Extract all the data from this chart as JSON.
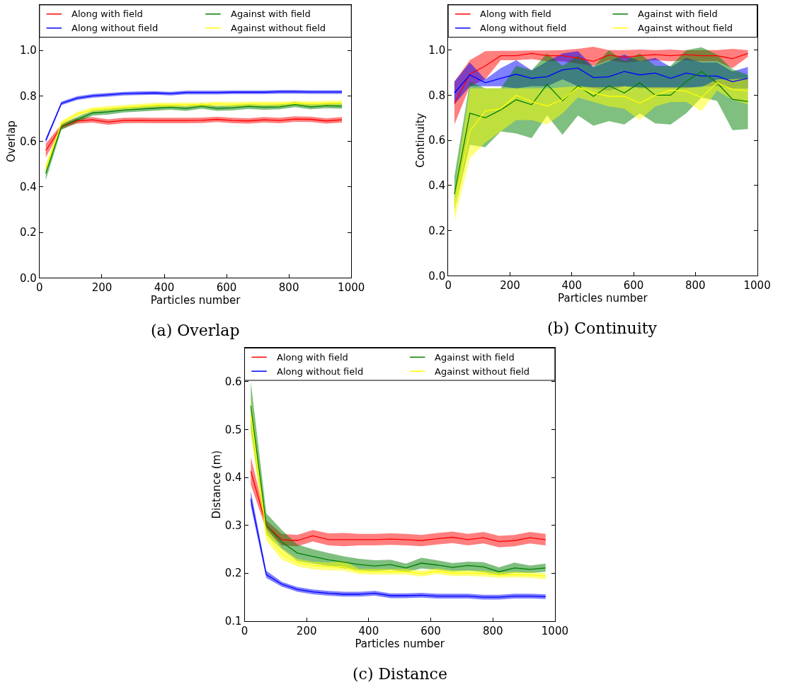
{
  "chart_data": [
    {
      "type": "line",
      "xlabel": "Particles number",
      "ylabel": "Overlap",
      "annotations": [
        "(a) Overlap"
      ],
      "legend": "top",
      "line_style": "solid",
      "x": [
        20,
        70,
        120,
        170,
        220,
        270,
        320,
        370,
        420,
        470,
        520,
        570,
        620,
        670,
        720,
        770,
        820,
        870,
        920,
        970
      ],
      "xlim": [
        0,
        1000
      ],
      "xticks": [
        0,
        200,
        400,
        600,
        800,
        1000
      ],
      "ylim": [
        0,
        1.2
      ],
      "yticks": [
        {
          "value": 0,
          "label": "0.0"
        },
        {
          "value": 0.2,
          "label": "0.2"
        },
        {
          "value": 0.4,
          "label": "0.4"
        },
        {
          "value": 0.6,
          "label": "0.6"
        },
        {
          "value": 0.8,
          "label": "0.8"
        },
        {
          "value": 1.0,
          "label": "1.0"
        }
      ],
      "series": [
        {
          "name": "Along with field",
          "color": "#ff0000",
          "values": [
            0.56,
            0.665,
            0.69,
            0.695,
            0.685,
            0.692,
            0.693,
            0.692,
            0.692,
            0.692,
            0.693,
            0.697,
            0.692,
            0.69,
            0.695,
            0.692,
            0.698,
            0.697,
            0.69,
            0.695
          ],
          "lower": [
            0.53,
            0.655,
            0.678,
            0.683,
            0.673,
            0.68,
            0.681,
            0.68,
            0.68,
            0.68,
            0.681,
            0.685,
            0.68,
            0.678,
            0.683,
            0.68,
            0.686,
            0.685,
            0.678,
            0.683
          ],
          "upper": [
            0.59,
            0.675,
            0.702,
            0.707,
            0.697,
            0.704,
            0.705,
            0.704,
            0.704,
            0.704,
            0.705,
            0.709,
            0.704,
            0.702,
            0.707,
            0.704,
            0.71,
            0.709,
            0.702,
            0.707
          ]
        },
        {
          "name": "Along without field",
          "color": "#0000ff",
          "values": [
            0.604,
            0.767,
            0.79,
            0.8,
            0.805,
            0.81,
            0.812,
            0.813,
            0.81,
            0.815,
            0.815,
            0.815,
            0.816,
            0.816,
            0.816,
            0.818,
            0.818,
            0.817,
            0.817,
            0.817
          ],
          "lower": [
            0.594,
            0.759,
            0.782,
            0.792,
            0.797,
            0.802,
            0.804,
            0.805,
            0.802,
            0.807,
            0.807,
            0.807,
            0.808,
            0.808,
            0.808,
            0.81,
            0.81,
            0.809,
            0.809,
            0.809
          ],
          "upper": [
            0.614,
            0.775,
            0.798,
            0.808,
            0.813,
            0.818,
            0.82,
            0.821,
            0.818,
            0.823,
            0.823,
            0.823,
            0.824,
            0.824,
            0.824,
            0.826,
            0.826,
            0.825,
            0.825,
            0.825
          ]
        },
        {
          "name": "Against with field",
          "color": "#008000",
          "values": [
            0.46,
            0.665,
            0.695,
            0.725,
            0.73,
            0.738,
            0.742,
            0.746,
            0.75,
            0.745,
            0.755,
            0.745,
            0.748,
            0.754,
            0.75,
            0.752,
            0.762,
            0.752,
            0.757,
            0.755
          ],
          "lower": [
            0.43,
            0.65,
            0.683,
            0.713,
            0.718,
            0.727,
            0.731,
            0.735,
            0.739,
            0.734,
            0.744,
            0.734,
            0.737,
            0.743,
            0.739,
            0.741,
            0.751,
            0.741,
            0.746,
            0.744
          ],
          "upper": [
            0.49,
            0.68,
            0.707,
            0.737,
            0.742,
            0.749,
            0.753,
            0.757,
            0.761,
            0.756,
            0.766,
            0.756,
            0.759,
            0.765,
            0.761,
            0.763,
            0.773,
            0.763,
            0.768,
            0.766
          ]
        },
        {
          "name": "Against without field",
          "color": "#ffff00",
          "values": [
            0.48,
            0.68,
            0.72,
            0.74,
            0.745,
            0.75,
            0.755,
            0.76,
            0.76,
            0.762,
            0.762,
            0.765,
            0.763,
            0.765,
            0.765,
            0.765,
            0.768,
            0.766,
            0.768,
            0.77
          ],
          "lower": [
            0.46,
            0.67,
            0.71,
            0.73,
            0.735,
            0.74,
            0.745,
            0.75,
            0.75,
            0.752,
            0.752,
            0.755,
            0.753,
            0.755,
            0.755,
            0.755,
            0.758,
            0.756,
            0.758,
            0.76
          ],
          "upper": [
            0.5,
            0.69,
            0.73,
            0.75,
            0.755,
            0.76,
            0.765,
            0.77,
            0.77,
            0.772,
            0.772,
            0.775,
            0.773,
            0.775,
            0.775,
            0.775,
            0.778,
            0.776,
            0.778,
            0.78
          ]
        }
      ]
    },
    {
      "type": "line",
      "xlabel": "Particles number",
      "ylabel": "Continuity",
      "annotations": [
        "(b) Continuity"
      ],
      "legend": "top",
      "line_style": "solid",
      "x": [
        20,
        70,
        120,
        170,
        220,
        270,
        320,
        370,
        420,
        470,
        520,
        570,
        620,
        670,
        720,
        770,
        820,
        870,
        920,
        970
      ],
      "xlim": [
        0,
        1000
      ],
      "xticks": [
        0,
        200,
        400,
        600,
        800,
        1000
      ],
      "ylim": [
        0,
        1.2
      ],
      "yticks": [
        {
          "value": 0,
          "label": "0.0"
        },
        {
          "value": 0.2,
          "label": "0.2"
        },
        {
          "value": 0.4,
          "label": "0.4"
        },
        {
          "value": 0.6,
          "label": "0.6"
        },
        {
          "value": 0.8,
          "label": "0.8"
        },
        {
          "value": 1.0,
          "label": "1.0"
        }
      ],
      "series": [
        {
          "name": "Along with field",
          "color": "#ff0000",
          "values": [
            0.763,
            0.893,
            0.93,
            0.975,
            0.975,
            0.985,
            0.975,
            0.975,
            0.965,
            0.95,
            0.978,
            0.968,
            0.975,
            0.98,
            0.975,
            0.98,
            0.975,
            0.975,
            0.962,
            0.985
          ],
          "lower": [
            0.67,
            0.84,
            0.87,
            0.955,
            0.955,
            0.96,
            0.95,
            0.95,
            0.94,
            0.93,
            0.955,
            0.945,
            0.95,
            0.955,
            0.95,
            0.955,
            0.95,
            0.95,
            0.92,
            0.97
          ],
          "upper": [
            0.86,
            0.955,
            0.995,
            0.997,
            0.997,
            0.998,
            0.998,
            1.0,
            1.005,
            1.015,
            1.0,
            1.0,
            1.002,
            1.0,
            1.002,
            0.998,
            1.0,
            1.0,
            1.005,
            1.0
          ]
        },
        {
          "name": "Along without field",
          "color": "#0000ff",
          "values": [
            0.81,
            0.89,
            0.855,
            0.875,
            0.893,
            0.875,
            0.882,
            0.912,
            0.92,
            0.878,
            0.882,
            0.905,
            0.89,
            0.898,
            0.875,
            0.898,
            0.885,
            0.885,
            0.86,
            0.875
          ],
          "lower": [
            0.76,
            0.84,
            0.84,
            0.84,
            0.83,
            0.84,
            0.84,
            0.87,
            0.84,
            0.83,
            0.82,
            0.84,
            0.83,
            0.83,
            0.83,
            0.83,
            0.84,
            0.84,
            0.83,
            0.83
          ],
          "upper": [
            0.86,
            0.945,
            0.87,
            0.92,
            0.955,
            0.91,
            0.95,
            0.985,
            0.995,
            0.925,
            0.95,
            0.98,
            0.95,
            0.965,
            0.925,
            0.965,
            0.945,
            0.945,
            0.905,
            0.925
          ]
        },
        {
          "name": "Against with field",
          "color": "#008000",
          "values": [
            0.362,
            0.72,
            0.7,
            0.735,
            0.78,
            0.758,
            0.848,
            0.775,
            0.842,
            0.795,
            0.842,
            0.81,
            0.855,
            0.8,
            0.8,
            0.86,
            0.905,
            0.855,
            0.782,
            0.772
          ],
          "lower": [
            0.29,
            0.58,
            0.57,
            0.64,
            0.63,
            0.61,
            0.71,
            0.625,
            0.71,
            0.665,
            0.685,
            0.67,
            0.72,
            0.675,
            0.67,
            0.72,
            0.79,
            0.775,
            0.645,
            0.65
          ],
          "upper": [
            0.44,
            0.86,
            0.83,
            0.83,
            0.93,
            0.91,
            0.985,
            0.93,
            0.975,
            0.925,
            1.0,
            0.95,
            0.985,
            0.93,
            0.93,
            1.0,
            1.012,
            0.98,
            0.915,
            0.89
          ]
        },
        {
          "name": "Against without field",
          "color": "#ffff00",
          "values": [
            0.31,
            0.64,
            0.73,
            0.74,
            0.8,
            0.772,
            0.752,
            0.78,
            0.835,
            0.81,
            0.795,
            0.795,
            0.765,
            0.8,
            0.822,
            0.818,
            0.79,
            0.855,
            0.825,
            0.82
          ],
          "lower": [
            0.245,
            0.52,
            0.59,
            0.64,
            0.69,
            0.69,
            0.67,
            0.72,
            0.79,
            0.77,
            0.75,
            0.74,
            0.69,
            0.75,
            0.77,
            0.77,
            0.73,
            0.82,
            0.78,
            0.76
          ],
          "upper": [
            0.37,
            0.83,
            0.83,
            0.83,
            0.83,
            0.83,
            0.83,
            0.835,
            0.84,
            0.835,
            0.835,
            0.84,
            0.835,
            0.835,
            0.835,
            0.835,
            0.835,
            0.87,
            0.87,
            0.875
          ]
        }
      ]
    },
    {
      "type": "line",
      "xlabel": "Particles number",
      "ylabel": "Distance (m)",
      "annotations": [
        "(c) Distance"
      ],
      "legend": "top",
      "line_style": "solid",
      "x": [
        20,
        70,
        120,
        170,
        220,
        270,
        320,
        370,
        420,
        470,
        520,
        570,
        620,
        670,
        720,
        770,
        820,
        870,
        920,
        970
      ],
      "xlim": [
        0,
        1000
      ],
      "xticks": [
        0,
        200,
        400,
        600,
        800,
        1000
      ],
      "ylim": [
        0.1,
        0.67
      ],
      "yticks": [
        0.1,
        0.2,
        0.3,
        0.4,
        0.5,
        0.6
      ],
      "series": [
        {
          "name": "Along with field",
          "color": "#ff0000",
          "values": [
            0.413,
            0.3,
            0.27,
            0.268,
            0.278,
            0.27,
            0.27,
            0.27,
            0.27,
            0.271,
            0.27,
            0.268,
            0.272,
            0.275,
            0.27,
            0.274,
            0.266,
            0.268,
            0.274,
            0.27
          ],
          "lower": [
            0.385,
            0.29,
            0.258,
            0.256,
            0.266,
            0.258,
            0.256,
            0.258,
            0.258,
            0.259,
            0.258,
            0.256,
            0.26,
            0.263,
            0.258,
            0.262,
            0.254,
            0.256,
            0.262,
            0.258
          ],
          "upper": [
            0.443,
            0.31,
            0.282,
            0.28,
            0.29,
            0.283,
            0.284,
            0.282,
            0.282,
            0.283,
            0.282,
            0.28,
            0.284,
            0.287,
            0.282,
            0.286,
            0.278,
            0.28,
            0.286,
            0.282
          ]
        },
        {
          "name": "Along without field",
          "color": "#0000ff",
          "values": [
            0.355,
            0.197,
            0.177,
            0.166,
            0.161,
            0.158,
            0.156,
            0.156,
            0.158,
            0.153,
            0.153,
            0.154,
            0.152,
            0.152,
            0.152,
            0.15,
            0.15,
            0.152,
            0.152,
            0.151
          ],
          "lower": [
            0.34,
            0.19,
            0.172,
            0.161,
            0.156,
            0.153,
            0.151,
            0.151,
            0.153,
            0.148,
            0.148,
            0.149,
            0.147,
            0.147,
            0.147,
            0.145,
            0.145,
            0.147,
            0.147,
            0.146
          ],
          "upper": [
            0.372,
            0.205,
            0.182,
            0.171,
            0.166,
            0.163,
            0.161,
            0.161,
            0.163,
            0.158,
            0.158,
            0.159,
            0.157,
            0.157,
            0.157,
            0.155,
            0.155,
            0.157,
            0.157,
            0.156
          ]
        },
        {
          "name": "Against with field",
          "color": "#008000",
          "values": [
            0.55,
            0.3,
            0.265,
            0.242,
            0.235,
            0.228,
            0.223,
            0.218,
            0.215,
            0.218,
            0.211,
            0.221,
            0.217,
            0.212,
            0.216,
            0.213,
            0.203,
            0.211,
            0.208,
            0.211
          ],
          "lower": [
            0.5,
            0.28,
            0.25,
            0.225,
            0.22,
            0.215,
            0.21,
            0.206,
            0.204,
            0.207,
            0.202,
            0.21,
            0.207,
            0.203,
            0.205,
            0.202,
            0.195,
            0.201,
            0.2,
            0.203
          ],
          "upper": [
            0.6,
            0.325,
            0.29,
            0.26,
            0.25,
            0.242,
            0.235,
            0.23,
            0.227,
            0.228,
            0.22,
            0.232,
            0.227,
            0.221,
            0.224,
            0.223,
            0.212,
            0.222,
            0.216,
            0.22
          ]
        },
        {
          "name": "Against without field",
          "color": "#ffff00",
          "values": [
            0.53,
            0.283,
            0.24,
            0.222,
            0.216,
            0.214,
            0.213,
            0.203,
            0.203,
            0.203,
            0.203,
            0.199,
            0.204,
            0.2,
            0.2,
            0.199,
            0.196,
            0.197,
            0.196,
            0.194
          ],
          "lower": [
            0.49,
            0.268,
            0.228,
            0.214,
            0.208,
            0.206,
            0.205,
            0.198,
            0.197,
            0.197,
            0.197,
            0.193,
            0.198,
            0.194,
            0.194,
            0.193,
            0.19,
            0.191,
            0.19,
            0.187
          ],
          "upper": [
            0.57,
            0.295,
            0.252,
            0.23,
            0.224,
            0.222,
            0.225,
            0.209,
            0.209,
            0.209,
            0.209,
            0.205,
            0.21,
            0.206,
            0.206,
            0.205,
            0.202,
            0.203,
            0.202,
            0.2
          ]
        }
      ]
    }
  ]
}
